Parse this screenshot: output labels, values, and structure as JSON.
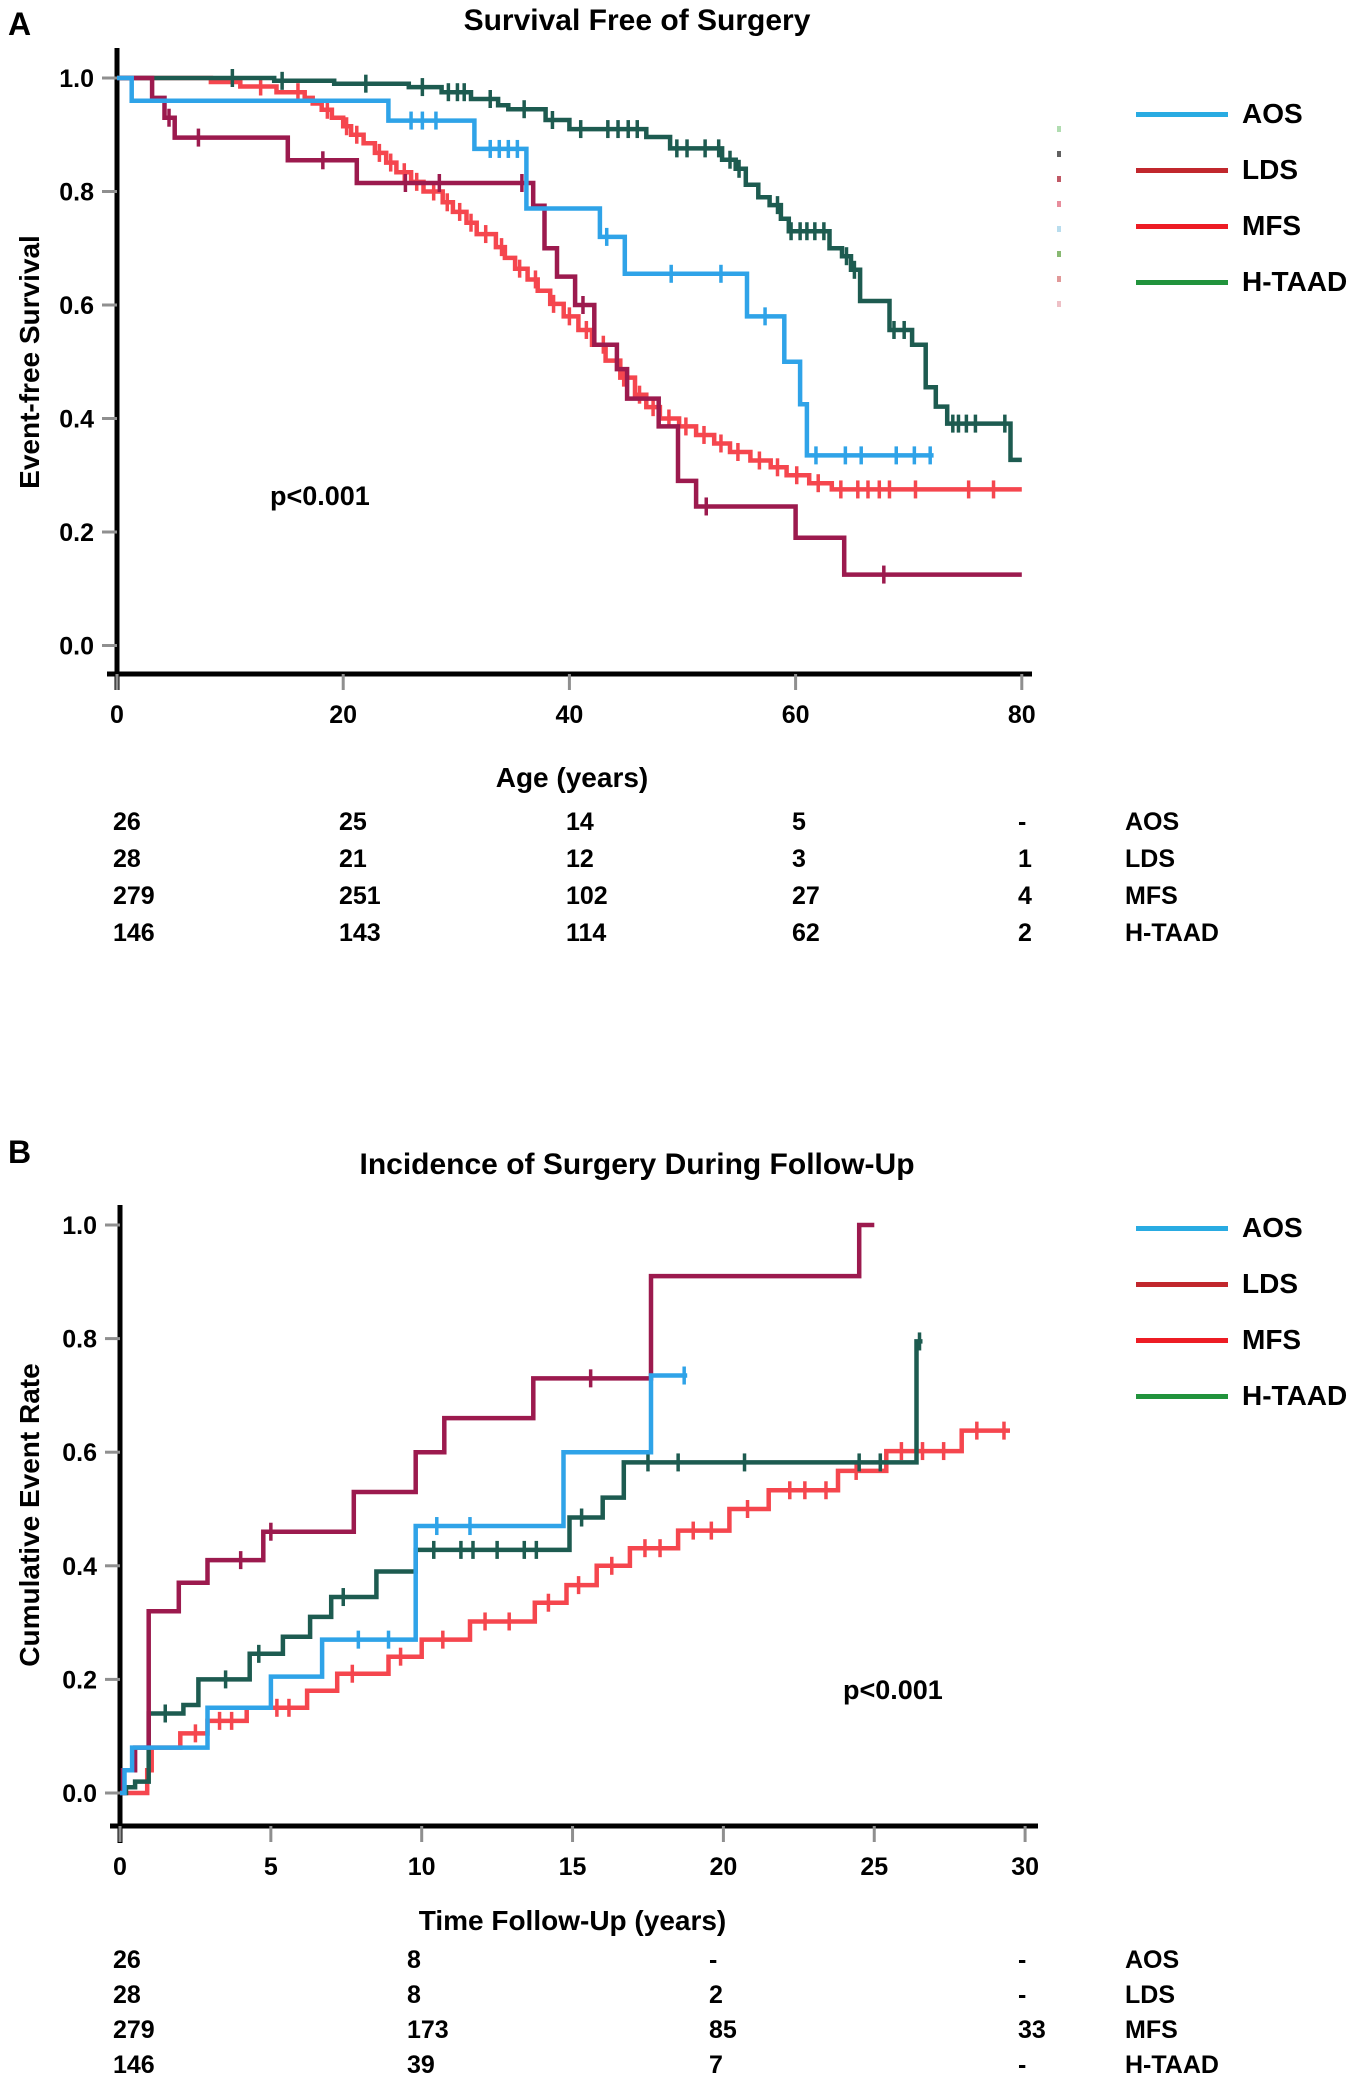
{
  "figure": {
    "background": "#ffffff"
  },
  "chart_data": [
    {
      "panel_label": "A",
      "type": "step-line",
      "kind": "kaplan-meier",
      "title": "Survival Free of Surgery",
      "xlabel": "Age (years)",
      "ylabel": "Event-free Survival",
      "p_value": "p<0.001",
      "xlim": [
        0,
        80
      ],
      "ylim": [
        0.0,
        1.0
      ],
      "grid": false,
      "legend_position": "right",
      "x_ticks": [
        "0",
        "20",
        "40",
        "60",
        "80"
      ],
      "y_ticks": [
        "1.0",
        "0.8",
        "0.6",
        "0.4",
        "0.2",
        "0.0"
      ],
      "legend": [
        {
          "name": "AOS",
          "color": "#29ABE2"
        },
        {
          "name": "LDS",
          "color": "#C1272D"
        },
        {
          "name": "MFS",
          "color": "#ED1C24"
        },
        {
          "name": "H-TAAD",
          "color": "#21933C"
        }
      ],
      "series": [
        {
          "name": "MFS",
          "color": "#F5464E",
          "start": 1.0,
          "end_x": 80,
          "steps": [
            [
              8.3,
              0.993
            ],
            [
              10.9,
              0.985
            ],
            [
              14.1,
              0.975
            ],
            [
              16.6,
              0.965
            ],
            [
              17.3,
              0.955
            ],
            [
              18.1,
              0.944
            ],
            [
              19,
              0.93
            ],
            [
              20,
              0.915
            ],
            [
              20.7,
              0.9
            ],
            [
              21.8,
              0.885
            ],
            [
              22.8,
              0.868
            ],
            [
              23.8,
              0.851
            ],
            [
              24.7,
              0.834
            ],
            [
              26,
              0.817
            ],
            [
              27.1,
              0.8
            ],
            [
              28.8,
              0.781
            ],
            [
              29.7,
              0.764
            ],
            [
              30.9,
              0.745
            ],
            [
              31.8,
              0.725
            ],
            [
              33.5,
              0.702
            ],
            [
              34.3,
              0.683
            ],
            [
              35.2,
              0.664
            ],
            [
              36.3,
              0.645
            ],
            [
              37.2,
              0.625
            ],
            [
              38.3,
              0.602
            ],
            [
              39.5,
              0.58
            ],
            [
              40.8,
              0.556
            ],
            [
              42,
              0.53
            ],
            [
              43.2,
              0.502
            ],
            [
              44.5,
              0.472
            ],
            [
              45.8,
              0.442
            ],
            [
              46.8,
              0.42
            ],
            [
              48,
              0.4
            ],
            [
              49.7,
              0.386
            ],
            [
              51.2,
              0.371
            ],
            [
              52.8,
              0.356
            ],
            [
              54.2,
              0.341
            ],
            [
              56,
              0.326
            ],
            [
              57.8,
              0.314
            ],
            [
              59.2,
              0.3
            ],
            [
              61.2,
              0.286
            ],
            [
              63.2,
              0.275
            ]
          ],
          "censors": [
            12.7,
            16,
            18.6,
            20.3,
            21.2,
            23.2,
            24.2,
            25.4,
            26.5,
            28,
            29.2,
            30.3,
            31.3,
            32.6,
            34,
            35.6,
            37,
            38.6,
            40,
            41.5,
            43,
            44.8,
            46.2,
            47.4,
            48.8,
            50.3,
            51.9,
            53.4,
            54.9,
            56.8,
            58.4,
            60.1,
            62,
            64,
            65.5,
            66.4,
            67.4,
            68.3,
            70.6,
            75.3,
            77.5
          ]
        },
        {
          "name": "H-TAAD",
          "color": "#1D5B50",
          "start": 1.0,
          "end_x": 80,
          "steps": [
            [
              13.9,
              0.995
            ],
            [
              19.2,
              0.99
            ],
            [
              25.8,
              0.984
            ],
            [
              28.7,
              0.975
            ],
            [
              31.3,
              0.963
            ],
            [
              33.7,
              0.952
            ],
            [
              34.6,
              0.945
            ],
            [
              37.9,
              0.926
            ],
            [
              40,
              0.91
            ],
            [
              46.8,
              0.896
            ],
            [
              48.9,
              0.876
            ],
            [
              53.5,
              0.856
            ],
            [
              54.7,
              0.84
            ],
            [
              55.6,
              0.812
            ],
            [
              56.7,
              0.79
            ],
            [
              57.7,
              0.776
            ],
            [
              58.7,
              0.752
            ],
            [
              59.4,
              0.73
            ],
            [
              63,
              0.7
            ],
            [
              64.1,
              0.686
            ],
            [
              64.9,
              0.662
            ],
            [
              65.7,
              0.607
            ],
            [
              68.3,
              0.556
            ],
            [
              70.3,
              0.53
            ],
            [
              71.5,
              0.455
            ],
            [
              72.4,
              0.421
            ],
            [
              73.4,
              0.391
            ],
            [
              79,
              0.327
            ]
          ],
          "censors": [
            10.2,
            14.6,
            22,
            27,
            29.3,
            30.1,
            30.7,
            33,
            36,
            38.5,
            41,
            43.4,
            44.3,
            45.2,
            46,
            49.5,
            50.4,
            52,
            53.2,
            54.2,
            55,
            58.4,
            59.6,
            60.4,
            61,
            61.7,
            62.5,
            64.5,
            65.2,
            68.7,
            69.6,
            73.9,
            74.4,
            75.1,
            75.9,
            78.5
          ]
        },
        {
          "name": "LDS",
          "color": "#9C1A4E",
          "start": 1.0,
          "end_x": 80,
          "steps": [
            [
              3.1,
              0.965
            ],
            [
              4.2,
              0.93
            ],
            [
              5.1,
              0.895
            ],
            [
              15.1,
              0.855
            ],
            [
              21.2,
              0.815
            ],
            [
              36.8,
              0.775
            ],
            [
              37.8,
              0.7
            ],
            [
              38.9,
              0.65
            ],
            [
              40.5,
              0.6
            ],
            [
              42.2,
              0.53
            ],
            [
              44.2,
              0.487
            ],
            [
              45.1,
              0.435
            ],
            [
              47.9,
              0.386
            ],
            [
              49.6,
              0.29
            ],
            [
              51.2,
              0.245
            ],
            [
              60,
              0.19
            ],
            [
              64.3,
              0.125
            ]
          ],
          "censors": [
            4.6,
            7.2,
            18.2,
            25.5,
            28.5,
            35.8,
            41.2,
            52.1,
            67.8
          ]
        },
        {
          "name": "AOS",
          "color": "#2FA3E8",
          "start": 1.0,
          "end_x": 72.2,
          "steps": [
            [
              1.3,
              0.96
            ],
            [
              24,
              0.925
            ],
            [
              31.6,
              0.875
            ],
            [
              36.2,
              0.77
            ],
            [
              42.7,
              0.72
            ],
            [
              44.9,
              0.655
            ],
            [
              55.7,
              0.58
            ],
            [
              59,
              0.5
            ],
            [
              60.4,
              0.425
            ],
            [
              61,
              0.335
            ]
          ],
          "censors": [
            26,
            27,
            28.2,
            33,
            33.8,
            34.6,
            35.4,
            43.3,
            49,
            53.4,
            57.3,
            61.8,
            64.4,
            65.8,
            68.9,
            70.5,
            71.9
          ]
        }
      ],
      "at_risk": {
        "rows": [
          {
            "label": "AOS",
            "counts": [
              "26",
              "25",
              "14",
              "5",
              "-"
            ]
          },
          {
            "label": "LDS",
            "counts": [
              "28",
              "21",
              "12",
              "3",
              "1"
            ]
          },
          {
            "label": "MFS",
            "counts": [
              "279",
              "251",
              "102",
              "27",
              "4"
            ]
          },
          {
            "label": "H-TAAD",
            "counts": [
              "146",
              "143",
              "114",
              "62",
              "2"
            ]
          }
        ]
      }
    },
    {
      "panel_label": "B",
      "type": "step-line",
      "kind": "cumulative-incidence",
      "title": "Incidence of Surgery During Follow-Up",
      "xlabel": "Time Follow-Up (years)",
      "ylabel": "Cumulative Event Rate",
      "p_value": "p<0.001",
      "xlim": [
        0,
        30
      ],
      "ylim": [
        0.0,
        1.0
      ],
      "grid": false,
      "legend_position": "right",
      "x_ticks": [
        "0",
        "5",
        "10",
        "15",
        "20",
        "25",
        "30"
      ],
      "y_ticks": [
        "1.0",
        "0.8",
        "0.6",
        "0.4",
        "0.2",
        "0.0"
      ],
      "legend": [
        {
          "name": "AOS",
          "color": "#29ABE2"
        },
        {
          "name": "LDS",
          "color": "#C1272D"
        },
        {
          "name": "MFS",
          "color": "#ED1C24"
        },
        {
          "name": "H-TAAD",
          "color": "#21933C"
        }
      ],
      "series": [
        {
          "name": "MFS",
          "color": "#F5464E",
          "start": 0.0,
          "end_x": 29.5,
          "steps": [
            [
              0.9,
              0.04
            ],
            [
              1.05,
              0.08
            ],
            [
              2.0,
              0.105
            ],
            [
              2.9,
              0.127
            ],
            [
              4.2,
              0.15
            ],
            [
              6.2,
              0.18
            ],
            [
              7.2,
              0.21
            ],
            [
              8.9,
              0.24
            ],
            [
              10.0,
              0.27
            ],
            [
              11.6,
              0.302
            ],
            [
              13.75,
              0.335
            ],
            [
              14.8,
              0.366
            ],
            [
              15.8,
              0.4
            ],
            [
              16.9,
              0.431
            ],
            [
              18.5,
              0.462
            ],
            [
              20.2,
              0.5
            ],
            [
              21.5,
              0.533
            ],
            [
              23.8,
              0.567
            ],
            [
              25.4,
              0.602
            ],
            [
              27.9,
              0.638
            ]
          ],
          "censors": [
            2.5,
            3.3,
            3.7,
            5.2,
            5.6,
            7.7,
            9.3,
            10.7,
            12.1,
            12.9,
            14.2,
            15.2,
            16.3,
            17.4,
            17.9,
            19.0,
            19.6,
            20.8,
            22.2,
            22.7,
            23.4,
            24.4,
            25.9,
            26.6,
            27.3,
            28.4,
            29.3
          ]
        },
        {
          "name": "H-TAAD",
          "color": "#1D5B50",
          "start": 0.0,
          "end_x": 26.6,
          "steps": [
            [
              0.2,
              0.01
            ],
            [
              0.5,
              0.02
            ],
            [
              0.95,
              0.14
            ],
            [
              2.1,
              0.155
            ],
            [
              2.6,
              0.2
            ],
            [
              4.3,
              0.245
            ],
            [
              5.4,
              0.275
            ],
            [
              6.3,
              0.31
            ],
            [
              7.0,
              0.345
            ],
            [
              8.5,
              0.39
            ],
            [
              9.8,
              0.428
            ],
            [
              14.9,
              0.485
            ],
            [
              16.0,
              0.52
            ],
            [
              16.7,
              0.582
            ],
            [
              26.4,
              0.795
            ]
          ],
          "censors": [
            1.5,
            3.5,
            4.6,
            7.4,
            10.4,
            11.3,
            11.7,
            12.5,
            13.4,
            13.8,
            15.3,
            17.5,
            18.5,
            20.7,
            24.5,
            25.2,
            26.5
          ]
        },
        {
          "name": "LDS",
          "color": "#9C1A4E",
          "start": 0.0,
          "end_x": 25.0,
          "steps": [
            [
              0.1,
              0.04
            ],
            [
              0.5,
              0.08
            ],
            [
              0.95,
              0.32
            ],
            [
              1.95,
              0.37
            ],
            [
              2.9,
              0.41
            ],
            [
              4.75,
              0.46
            ],
            [
              7.75,
              0.53
            ],
            [
              9.8,
              0.6
            ],
            [
              10.75,
              0.66
            ],
            [
              13.7,
              0.73
            ],
            [
              17.6,
              0.91
            ],
            [
              24.5,
              1.0
            ]
          ],
          "censors": [
            4.0,
            5.0,
            15.6
          ]
        },
        {
          "name": "AOS",
          "color": "#2FA3E8",
          "start": 0.0,
          "end_x": 18.8,
          "steps": [
            [
              0.15,
              0.04
            ],
            [
              0.4,
              0.08
            ],
            [
              2.9,
              0.15
            ],
            [
              5.0,
              0.205
            ],
            [
              6.7,
              0.27
            ],
            [
              9.8,
              0.47
            ],
            [
              14.7,
              0.6
            ],
            [
              17.6,
              0.735
            ]
          ],
          "censors": [
            7.9,
            8.9,
            10.5,
            11.6,
            18.7
          ]
        }
      ],
      "at_risk": {
        "rows": [
          {
            "label": "AOS",
            "counts": [
              "26",
              "8",
              "-",
              "-"
            ]
          },
          {
            "label": "LDS",
            "counts": [
              "28",
              "8",
              "2",
              "-"
            ]
          },
          {
            "label": "MFS",
            "counts": [
              "279",
              "173",
              "85",
              "33"
            ]
          },
          {
            "label": "H-TAAD",
            "counts": [
              "146",
              "39",
              "7",
              "-"
            ]
          }
        ]
      }
    }
  ],
  "stray_marks": {
    "colors": [
      "#9ed49e",
      "#3a3a3a",
      "#b03040",
      "#e27083",
      "#a8d4ea",
      "#6aa84f",
      "#d98080",
      "#eab0b8"
    ]
  }
}
